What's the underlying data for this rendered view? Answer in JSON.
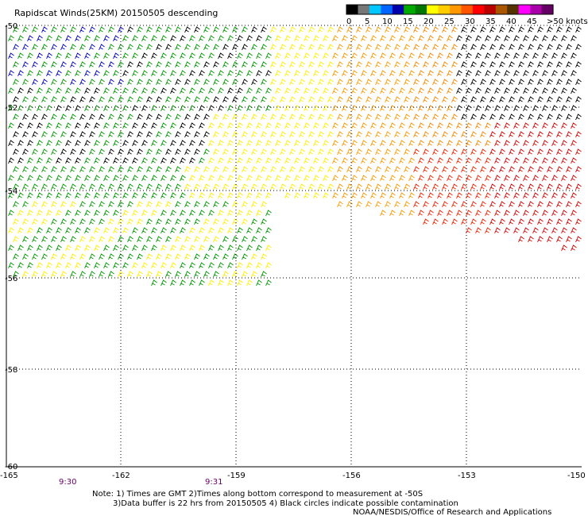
{
  "title": "Rapidscat Winds(25KM) 20150505 descending",
  "legend": {
    "unit_label": ">50 knots",
    "labels": [
      "0",
      "5",
      "10",
      "15",
      "20",
      "25",
      "30",
      "35",
      "40",
      "45"
    ],
    "colors": [
      "#000000",
      "#777777",
      "#00c8ff",
      "#0066ff",
      "#0000aa",
      "#00aa00",
      "#007700",
      "#ffff00",
      "#ffcc00",
      "#ff9900",
      "#ff5500",
      "#ff0000",
      "#bb0000",
      "#aa5500",
      "#553300",
      "#ff00ff",
      "#aa00aa",
      "#660066"
    ]
  },
  "lon_labels": [
    "-165",
    "-162",
    "-159",
    "-156",
    "-153",
    "-150"
  ],
  "lat_labels": [
    "-50",
    "-52",
    "-54",
    "-56",
    "-58",
    "-60"
  ],
  "times": [
    "9:30",
    "9:31"
  ],
  "notes": [
    "Note: 1) Times are GMT 2)Times along bottom correspond to measurement at -50S",
    "3)Data buffer is 22 hrs from 20150505 4) Black circles indicate possible contamination",
    "NOAA/NESDIS/Office of Research and Applications"
  ]
}
